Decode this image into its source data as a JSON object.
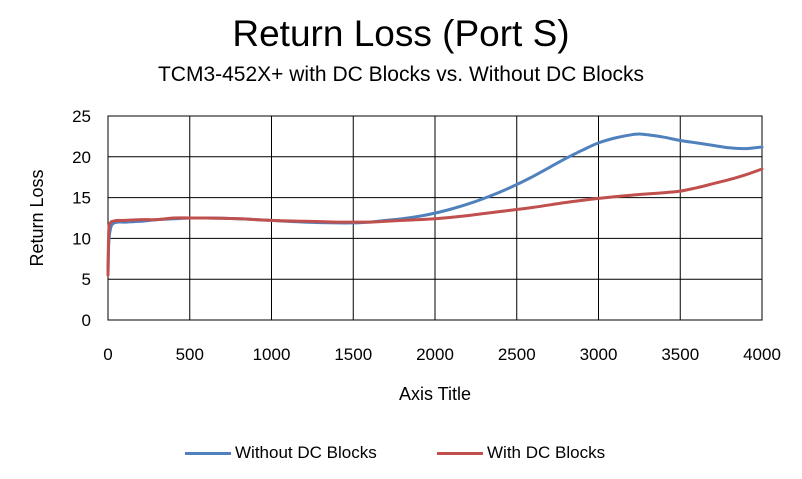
{
  "chart_data": {
    "type": "line",
    "title": "Return Loss (Port S)",
    "subtitle": "TCM3-452X+ with DC Blocks vs. Without DC Blocks",
    "xlabel": "Axis Title",
    "ylabel": "Return Loss",
    "xlim": [
      0,
      4000
    ],
    "ylim": [
      0,
      25
    ],
    "xticks": [
      0,
      500,
      1000,
      1500,
      2000,
      2500,
      3000,
      3500,
      4000
    ],
    "yticks": [
      0,
      5,
      10,
      15,
      20,
      25
    ],
    "grid": true,
    "legend": "bottom",
    "series": [
      {
        "name": "Without DC Blocks",
        "color": "#4F81BD",
        "x": [
          0,
          5,
          15,
          30,
          60,
          100,
          200,
          300,
          400,
          500,
          600,
          800,
          1000,
          1200,
          1400,
          1500,
          1600,
          1700,
          1800,
          1900,
          2000,
          2100,
          2200,
          2300,
          2400,
          2500,
          2600,
          2700,
          2800,
          2900,
          3000,
          3100,
          3200,
          3250,
          3300,
          3400,
          3500,
          3600,
          3700,
          3800,
          3900,
          4000
        ],
        "y": [
          5.8,
          9.5,
          11.2,
          11.8,
          12.0,
          12.0,
          12.1,
          12.3,
          12.4,
          12.5,
          12.5,
          12.4,
          12.2,
          12.0,
          11.9,
          11.9,
          12.0,
          12.2,
          12.4,
          12.7,
          13.1,
          13.6,
          14.2,
          14.9,
          15.7,
          16.6,
          17.6,
          18.7,
          19.8,
          20.8,
          21.7,
          22.3,
          22.7,
          22.8,
          22.7,
          22.4,
          22.0,
          21.7,
          21.4,
          21.1,
          21.0,
          21.2
        ]
      },
      {
        "name": "With DC Blocks",
        "color": "#C0504D",
        "x": [
          0,
          5,
          15,
          30,
          60,
          100,
          200,
          300,
          400,
          500,
          600,
          800,
          1000,
          1200,
          1400,
          1500,
          1600,
          1700,
          1800,
          1900,
          2000,
          2200,
          2400,
          2600,
          2800,
          3000,
          3200,
          3400,
          3500,
          3600,
          3700,
          3800,
          3900,
          4000
        ],
        "y": [
          5.5,
          11.0,
          11.9,
          12.1,
          12.2,
          12.2,
          12.3,
          12.3,
          12.5,
          12.5,
          12.5,
          12.4,
          12.2,
          12.1,
          12.0,
          12.0,
          12.0,
          12.1,
          12.2,
          12.3,
          12.4,
          12.8,
          13.3,
          13.8,
          14.4,
          14.9,
          15.3,
          15.6,
          15.8,
          16.2,
          16.7,
          17.2,
          17.8,
          18.5
        ]
      }
    ]
  }
}
